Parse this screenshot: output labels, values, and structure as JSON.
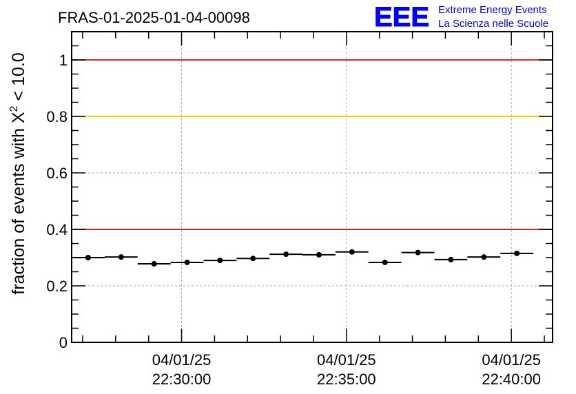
{
  "header": {
    "run_title": "FRAS-01-2025-01-04-00098",
    "logo_text": "EEE",
    "logo_line1": "Extreme Energy Events",
    "logo_line2": "La Scienza nelle Scuole"
  },
  "chart_data": {
    "type": "scatter",
    "title": "FRAS-01-2025-01-04-00098",
    "ylabel_main": "fraction of events with X",
    "ylabel_sup": "2",
    "ylabel_tail": " < 10.0",
    "xlabel": "",
    "x_unit": "minutes",
    "xlim": [
      "22:26:40",
      "22:41:15"
    ],
    "ylim": [
      0,
      1.1
    ],
    "y_ticks": [
      {
        "value": 0,
        "label": "0"
      },
      {
        "value": 0.2,
        "label": "0.2"
      },
      {
        "value": 0.4,
        "label": "0.4"
      },
      {
        "value": 0.6,
        "label": "0.6"
      },
      {
        "value": 0.8,
        "label": "0.8"
      },
      {
        "value": 1.0,
        "label": "1"
      }
    ],
    "x_ticks": [
      {
        "time": "22:30:00",
        "date_label": "04/01/25",
        "time_label": "22:30:00"
      },
      {
        "time": "22:35:00",
        "date_label": "04/01/25",
        "time_label": "22:35:00"
      },
      {
        "time": "22:40:00",
        "date_label": "04/01/25",
        "time_label": "22:40:00"
      }
    ],
    "grid": true,
    "reference_lines": [
      {
        "y": 1.0,
        "color": "#e8261f"
      },
      {
        "y": 0.8,
        "color": "#ffc800"
      },
      {
        "y": 0.4,
        "color": "#e8261f"
      }
    ],
    "points": [
      {
        "x_start": "22:26:40",
        "x_end": "22:27:40",
        "y": 0.3
      },
      {
        "x_start": "22:27:40",
        "x_end": "22:28:40",
        "y": 0.302
      },
      {
        "x_start": "22:28:40",
        "x_end": "22:29:40",
        "y": 0.278
      },
      {
        "x_start": "22:29:40",
        "x_end": "22:30:40",
        "y": 0.283
      },
      {
        "x_start": "22:30:40",
        "x_end": "22:31:40",
        "y": 0.29
      },
      {
        "x_start": "22:31:40",
        "x_end": "22:32:40",
        "y": 0.297
      },
      {
        "x_start": "22:32:40",
        "x_end": "22:33:40",
        "y": 0.312
      },
      {
        "x_start": "22:33:40",
        "x_end": "22:34:40",
        "y": 0.31
      },
      {
        "x_start": "22:34:40",
        "x_end": "22:35:40",
        "y": 0.32
      },
      {
        "x_start": "22:35:40",
        "x_end": "22:36:40",
        "y": 0.283
      },
      {
        "x_start": "22:36:40",
        "x_end": "22:37:40",
        "y": 0.318
      },
      {
        "x_start": "22:37:40",
        "x_end": "22:38:40",
        "y": 0.293
      },
      {
        "x_start": "22:38:40",
        "x_end": "22:39:40",
        "y": 0.302
      },
      {
        "x_start": "22:39:40",
        "x_end": "22:40:40",
        "y": 0.315
      }
    ],
    "colors": {
      "marker": "#000000",
      "grid": "#a8a8a8",
      "logo_blue": "#0000ff"
    }
  }
}
